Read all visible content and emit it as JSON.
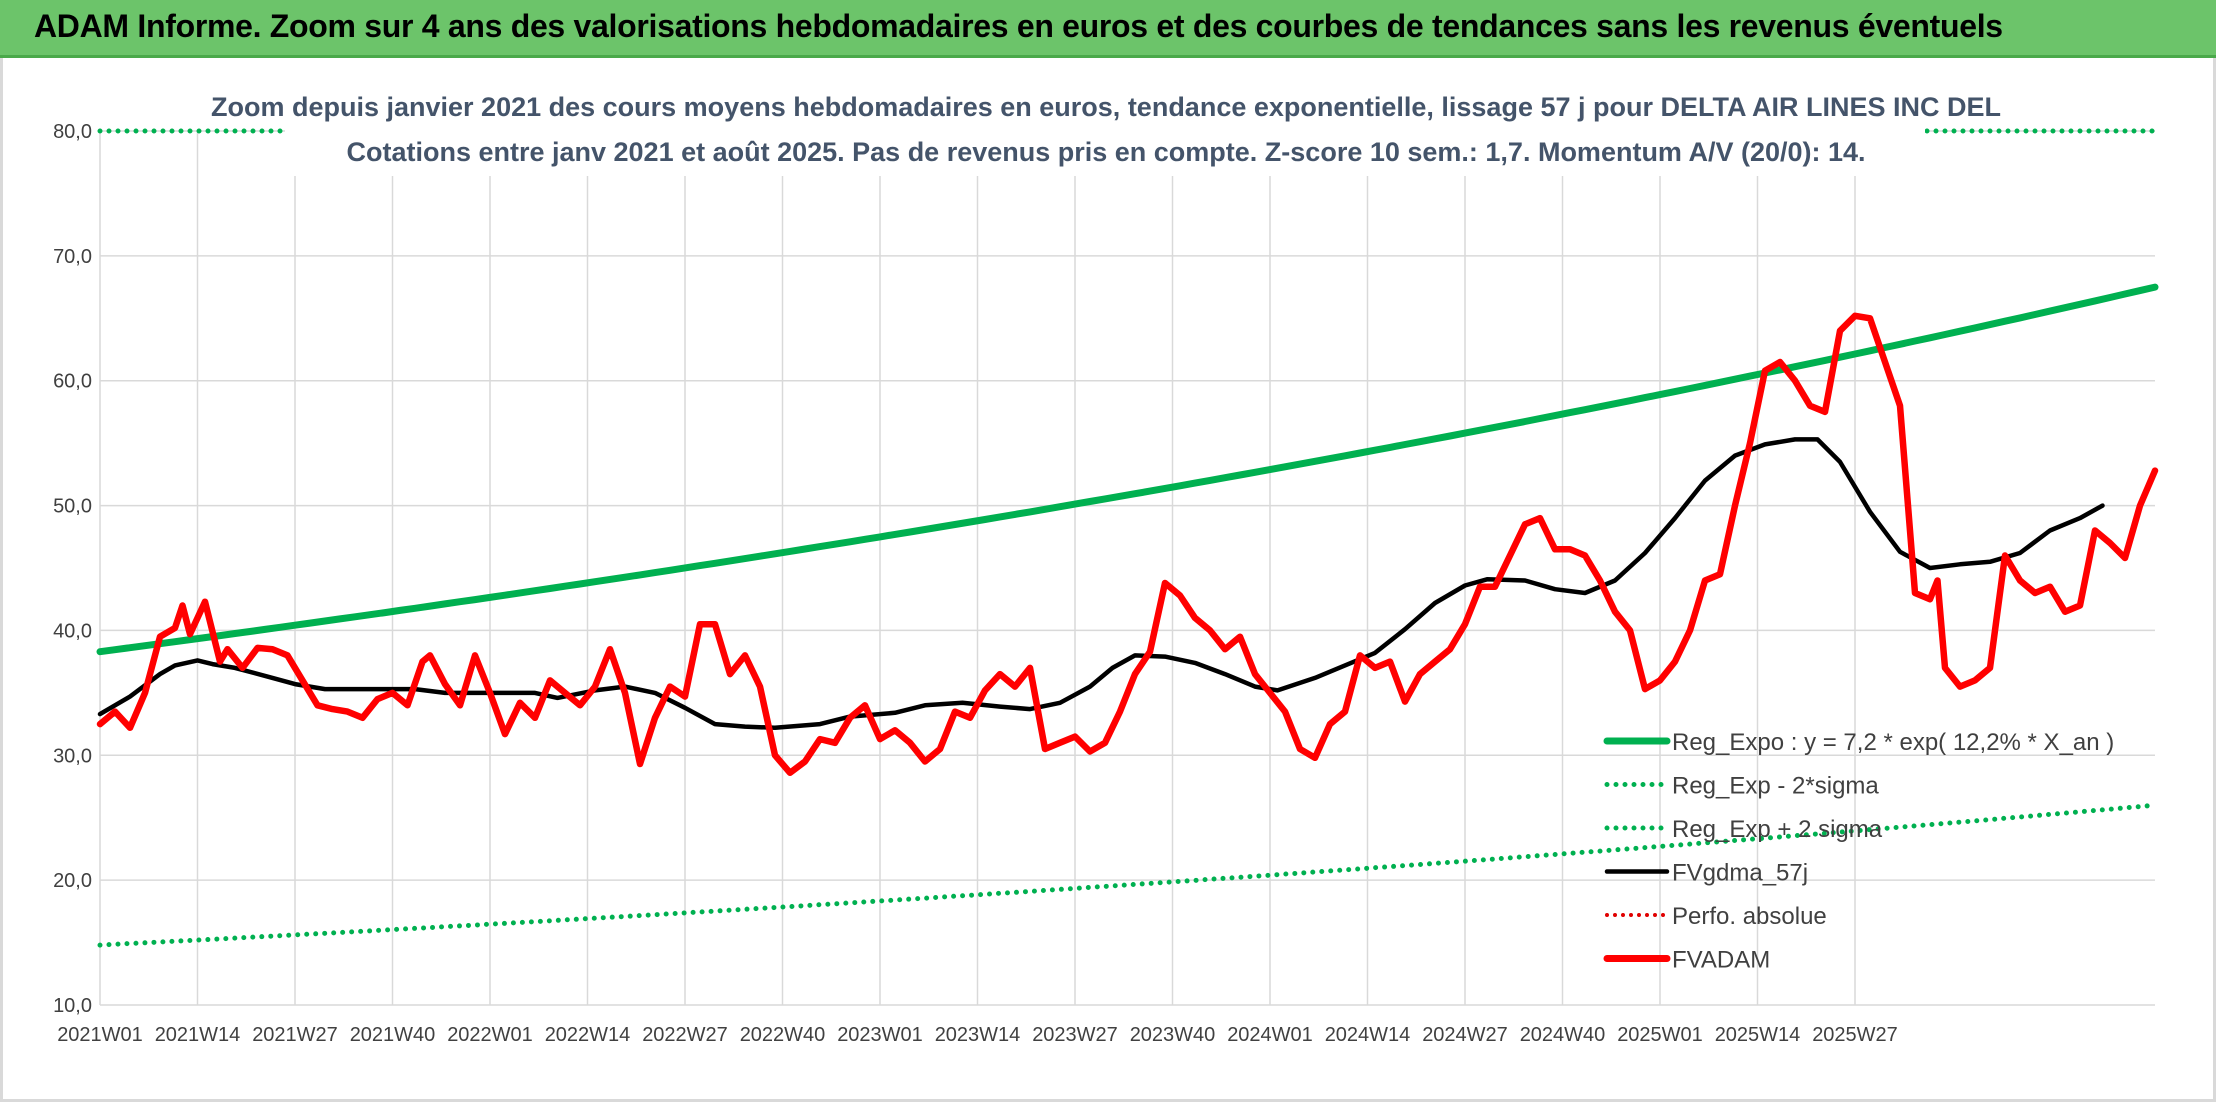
{
  "header": {
    "title": "ADAM Informe. Zoom sur 4 ans des valorisations hebdomadaires en euros et des courbes de tendances sans les revenus éventuels"
  },
  "chart_data": {
    "type": "line",
    "subtitle_line1": "Zoom depuis janvier 2021 des cours moyens hebdomadaires en euros, tendance exponentielle, lissage 57 j pour DELTA AIR LINES INC DEL",
    "subtitle_line2": "Cotations entre janv 2021 et août 2025. Pas de revenus pris en compte. Z-score 10 sem.: 1,7. Momentum A/V (20/0): 14.",
    "ylim": [
      10,
      80
    ],
    "y_ticks": [
      "80,0",
      "70,0",
      "60,0",
      "50,0",
      "40,0",
      "30,0",
      "20,0",
      "10,0"
    ],
    "x_ticks": [
      "2021W01",
      "2021W14",
      "2021W27",
      "2021W40",
      "2022W01",
      "2022W14",
      "2022W27",
      "2022W40",
      "2023W01",
      "2023W14",
      "2023W27",
      "2023W40",
      "2024W01",
      "2024W14",
      "2024W27",
      "2024W40",
      "2025W01",
      "2025W14",
      "2025W27"
    ],
    "x_range_weeks": [
      0,
      245
    ],
    "grid": true,
    "legend_position": "bottom-right",
    "colors": {
      "reg_expo": "#00b050",
      "fvgdma": "#000000",
      "perfo": "#e00000",
      "fvadam": "#ff0000"
    },
    "series": [
      {
        "name": "Reg_Expo : y = 7,2 * exp( 12,2% *  X_an )",
        "style": "solid-green",
        "start": 38.3,
        "end": 67.5
      },
      {
        "name": "Reg_Exp - 2*sigma",
        "style": "dotted-green",
        "start": 14.8,
        "end": 26.0
      },
      {
        "name": "Reg_Exp + 2 sigma",
        "style": "dotted-green",
        "start": 80.0,
        "end": 80.0
      },
      {
        "name": "FVgdma_57j",
        "style": "solid-black",
        "points": [
          [
            0,
            33.3
          ],
          [
            4,
            34.7
          ],
          [
            8,
            36.5
          ],
          [
            10,
            37.2
          ],
          [
            13,
            37.6
          ],
          [
            15,
            37.3
          ],
          [
            18,
            37.0
          ],
          [
            23,
            36.2
          ],
          [
            26,
            35.7
          ],
          [
            30,
            35.3
          ],
          [
            36,
            35.3
          ],
          [
            42,
            35.3
          ],
          [
            46,
            35.0
          ],
          [
            52,
            35.0
          ],
          [
            58,
            35.0
          ],
          [
            61,
            34.6
          ],
          [
            66,
            35.2
          ],
          [
            70,
            35.5
          ],
          [
            74,
            35.0
          ],
          [
            78,
            33.8
          ],
          [
            82,
            32.5
          ],
          [
            86,
            32.3
          ],
          [
            90,
            32.2
          ],
          [
            96,
            32.5
          ],
          [
            100,
            33.1
          ],
          [
            106,
            33.4
          ],
          [
            110,
            34.0
          ],
          [
            115,
            34.2
          ],
          [
            120,
            33.9
          ],
          [
            124,
            33.7
          ],
          [
            128,
            34.2
          ],
          [
            132,
            35.5
          ],
          [
            135,
            37.0
          ],
          [
            138,
            38.0
          ],
          [
            142,
            37.9
          ],
          [
            146,
            37.4
          ],
          [
            150,
            36.5
          ],
          [
            154,
            35.5
          ],
          [
            157,
            35.2
          ],
          [
            162,
            36.2
          ],
          [
            166,
            37.2
          ],
          [
            170,
            38.2
          ],
          [
            174,
            40.1
          ],
          [
            178,
            42.2
          ],
          [
            182,
            43.6
          ],
          [
            185,
            44.1
          ],
          [
            190,
            44.0
          ],
          [
            194,
            43.3
          ],
          [
            198,
            43.0
          ],
          [
            202,
            44.0
          ],
          [
            206,
            46.2
          ],
          [
            210,
            49.0
          ],
          [
            214,
            52.0
          ],
          [
            218,
            54.0
          ],
          [
            222,
            54.9
          ],
          [
            226,
            55.3
          ],
          [
            229,
            55.3
          ],
          [
            232,
            53.5
          ],
          [
            236,
            49.5
          ],
          [
            240,
            46.3
          ],
          [
            244,
            45.0
          ],
          [
            248,
            45.3
          ],
          [
            252,
            45.5
          ],
          [
            256,
            46.2
          ],
          [
            260,
            48.0
          ],
          [
            264,
            49.0
          ],
          [
            267,
            50.0
          ]
        ]
      },
      {
        "name": "Perfo. absolue",
        "style": "dotted-red"
      },
      {
        "name": "FVADAM",
        "style": "solid-red",
        "points": [
          [
            0,
            32.5
          ],
          [
            2,
            33.5
          ],
          [
            4,
            32.2
          ],
          [
            6,
            35.0
          ],
          [
            8,
            39.5
          ],
          [
            10,
            40.2
          ],
          [
            11,
            42.0
          ],
          [
            12,
            39.7
          ],
          [
            14,
            42.3
          ],
          [
            16,
            37.5
          ],
          [
            17,
            38.5
          ],
          [
            19,
            37.0
          ],
          [
            21,
            38.6
          ],
          [
            23,
            38.5
          ],
          [
            25,
            38.0
          ],
          [
            27,
            36.0
          ],
          [
            29,
            34.0
          ],
          [
            31,
            33.7
          ],
          [
            33,
            33.5
          ],
          [
            35,
            33.0
          ],
          [
            37,
            34.5
          ],
          [
            39,
            35.0
          ],
          [
            41,
            34.0
          ],
          [
            43,
            37.5
          ],
          [
            44,
            38.0
          ],
          [
            46,
            35.7
          ],
          [
            48,
            34.0
          ],
          [
            50,
            38.0
          ],
          [
            52,
            35.0
          ],
          [
            54,
            31.7
          ],
          [
            56,
            34.2
          ],
          [
            58,
            33.0
          ],
          [
            60,
            36.0
          ],
          [
            62,
            35.0
          ],
          [
            64,
            34.0
          ],
          [
            66,
            35.5
          ],
          [
            68,
            38.5
          ],
          [
            70,
            35.0
          ],
          [
            72,
            29.3
          ],
          [
            74,
            33.0
          ],
          [
            76,
            35.5
          ],
          [
            78,
            34.7
          ],
          [
            80,
            40.5
          ],
          [
            82,
            40.5
          ],
          [
            84,
            36.5
          ],
          [
            86,
            38.0
          ],
          [
            88,
            35.5
          ],
          [
            90,
            30.0
          ],
          [
            92,
            28.6
          ],
          [
            94,
            29.5
          ],
          [
            96,
            31.3
          ],
          [
            98,
            31.0
          ],
          [
            100,
            33.0
          ],
          [
            102,
            34.0
          ],
          [
            104,
            31.3
          ],
          [
            106,
            32.0
          ],
          [
            108,
            31.0
          ],
          [
            110,
            29.5
          ],
          [
            112,
            30.5
          ],
          [
            114,
            33.5
          ],
          [
            116,
            33.0
          ],
          [
            118,
            35.2
          ],
          [
            120,
            36.5
          ],
          [
            122,
            35.5
          ],
          [
            124,
            37.0
          ],
          [
            126,
            30.5
          ],
          [
            128,
            31.0
          ],
          [
            130,
            31.5
          ],
          [
            132,
            30.3
          ],
          [
            134,
            31.0
          ],
          [
            136,
            33.5
          ],
          [
            138,
            36.5
          ],
          [
            140,
            38.3
          ],
          [
            142,
            43.8
          ],
          [
            144,
            42.8
          ],
          [
            146,
            41.0
          ],
          [
            148,
            40.0
          ],
          [
            150,
            38.5
          ],
          [
            152,
            39.5
          ],
          [
            154,
            36.5
          ],
          [
            156,
            35.0
          ],
          [
            158,
            33.5
          ],
          [
            160,
            30.5
          ],
          [
            162,
            29.8
          ],
          [
            164,
            32.5
          ],
          [
            166,
            33.5
          ],
          [
            168,
            38.0
          ],
          [
            170,
            37.0
          ],
          [
            172,
            37.5
          ],
          [
            174,
            34.3
          ],
          [
            176,
            36.5
          ],
          [
            178,
            37.5
          ],
          [
            180,
            38.5
          ],
          [
            182,
            40.5
          ],
          [
            184,
            43.5
          ],
          [
            186,
            43.5
          ],
          [
            188,
            46.0
          ],
          [
            190,
            48.5
          ],
          [
            192,
            49.0
          ],
          [
            194,
            46.5
          ],
          [
            196,
            46.5
          ],
          [
            198,
            46.0
          ],
          [
            200,
            44.0
          ],
          [
            202,
            41.5
          ],
          [
            204,
            40.0
          ],
          [
            206,
            35.3
          ],
          [
            208,
            36.0
          ],
          [
            210,
            37.5
          ],
          [
            212,
            40.0
          ],
          [
            214,
            44.0
          ],
          [
            216,
            44.5
          ],
          [
            218,
            50.0
          ],
          [
            220,
            55.0
          ],
          [
            222,
            60.8
          ],
          [
            224,
            61.5
          ],
          [
            226,
            60.0
          ],
          [
            228,
            58.0
          ],
          [
            230,
            57.5
          ],
          [
            232,
            64.0
          ],
          [
            234,
            65.2
          ],
          [
            236,
            65.0
          ],
          [
            238,
            61.5
          ],
          [
            240,
            58.0
          ],
          [
            242,
            43.0
          ],
          [
            244,
            42.5
          ],
          [
            245,
            44.0
          ],
          [
            246,
            37.0
          ],
          [
            248,
            35.5
          ],
          [
            250,
            36.0
          ],
          [
            252,
            37.0
          ],
          [
            254,
            46.0
          ],
          [
            256,
            44.0
          ],
          [
            258,
            43.0
          ],
          [
            260,
            43.5
          ],
          [
            262,
            41.5
          ],
          [
            264,
            42.0
          ],
          [
            266,
            48.0
          ],
          [
            268,
            47.0
          ],
          [
            270,
            45.8
          ],
          [
            272,
            50.0
          ],
          [
            274,
            52.8
          ]
        ]
      }
    ]
  }
}
